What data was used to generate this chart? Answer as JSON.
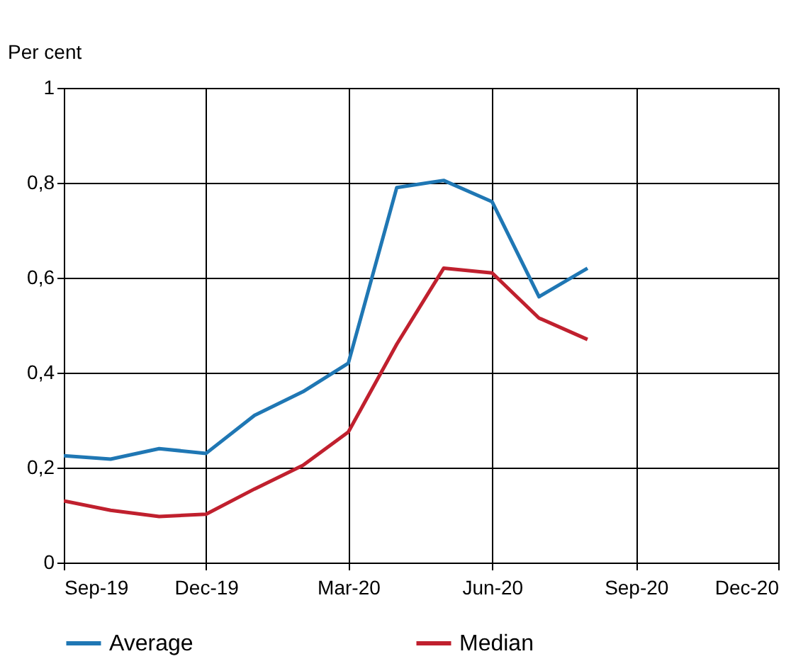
{
  "chart_data": {
    "type": "line",
    "ylabel": "Per cent",
    "x": [
      "2019-09",
      "2019-10",
      "2019-11",
      "2019-12",
      "2020-01",
      "2020-02",
      "2020-03",
      "2020-04",
      "2020-05",
      "2020-06",
      "2020-07",
      "2020-08"
    ],
    "series": [
      {
        "name": "Average",
        "color": "#1f77b4",
        "values": [
          0.225,
          0.218,
          0.24,
          0.23,
          0.31,
          0.36,
          0.42,
          0.79,
          0.805,
          0.76,
          0.56,
          0.62
        ]
      },
      {
        "name": "Median",
        "color": "#c0202e",
        "values": [
          0.13,
          0.11,
          0.097,
          0.102,
          0.155,
          0.205,
          0.275,
          0.46,
          0.62,
          0.61,
          0.515,
          0.47
        ]
      }
    ],
    "xlim": [
      "2019-09",
      "2020-12"
    ],
    "xticks": [
      {
        "value": "2019-09",
        "label": "Sep-19"
      },
      {
        "value": "2019-12",
        "label": "Dec-19"
      },
      {
        "value": "2020-03",
        "label": "Mar-20"
      },
      {
        "value": "2020-06",
        "label": "Jun-20"
      },
      {
        "value": "2020-09",
        "label": "Sep-20"
      },
      {
        "value": "2020-12",
        "label": "Dec-20"
      }
    ],
    "ylim": [
      0,
      1
    ],
    "yticks": [
      {
        "value": 0,
        "label": "0"
      },
      {
        "value": 0.2,
        "label": "0,2"
      },
      {
        "value": 0.4,
        "label": "0,4"
      },
      {
        "value": 0.6,
        "label": "0,6"
      },
      {
        "value": 0.8,
        "label": "0,8"
      },
      {
        "value": 1,
        "label": "1"
      }
    ],
    "grid": true,
    "legend": "bottom",
    "line_style": "solid",
    "marker": "none"
  }
}
